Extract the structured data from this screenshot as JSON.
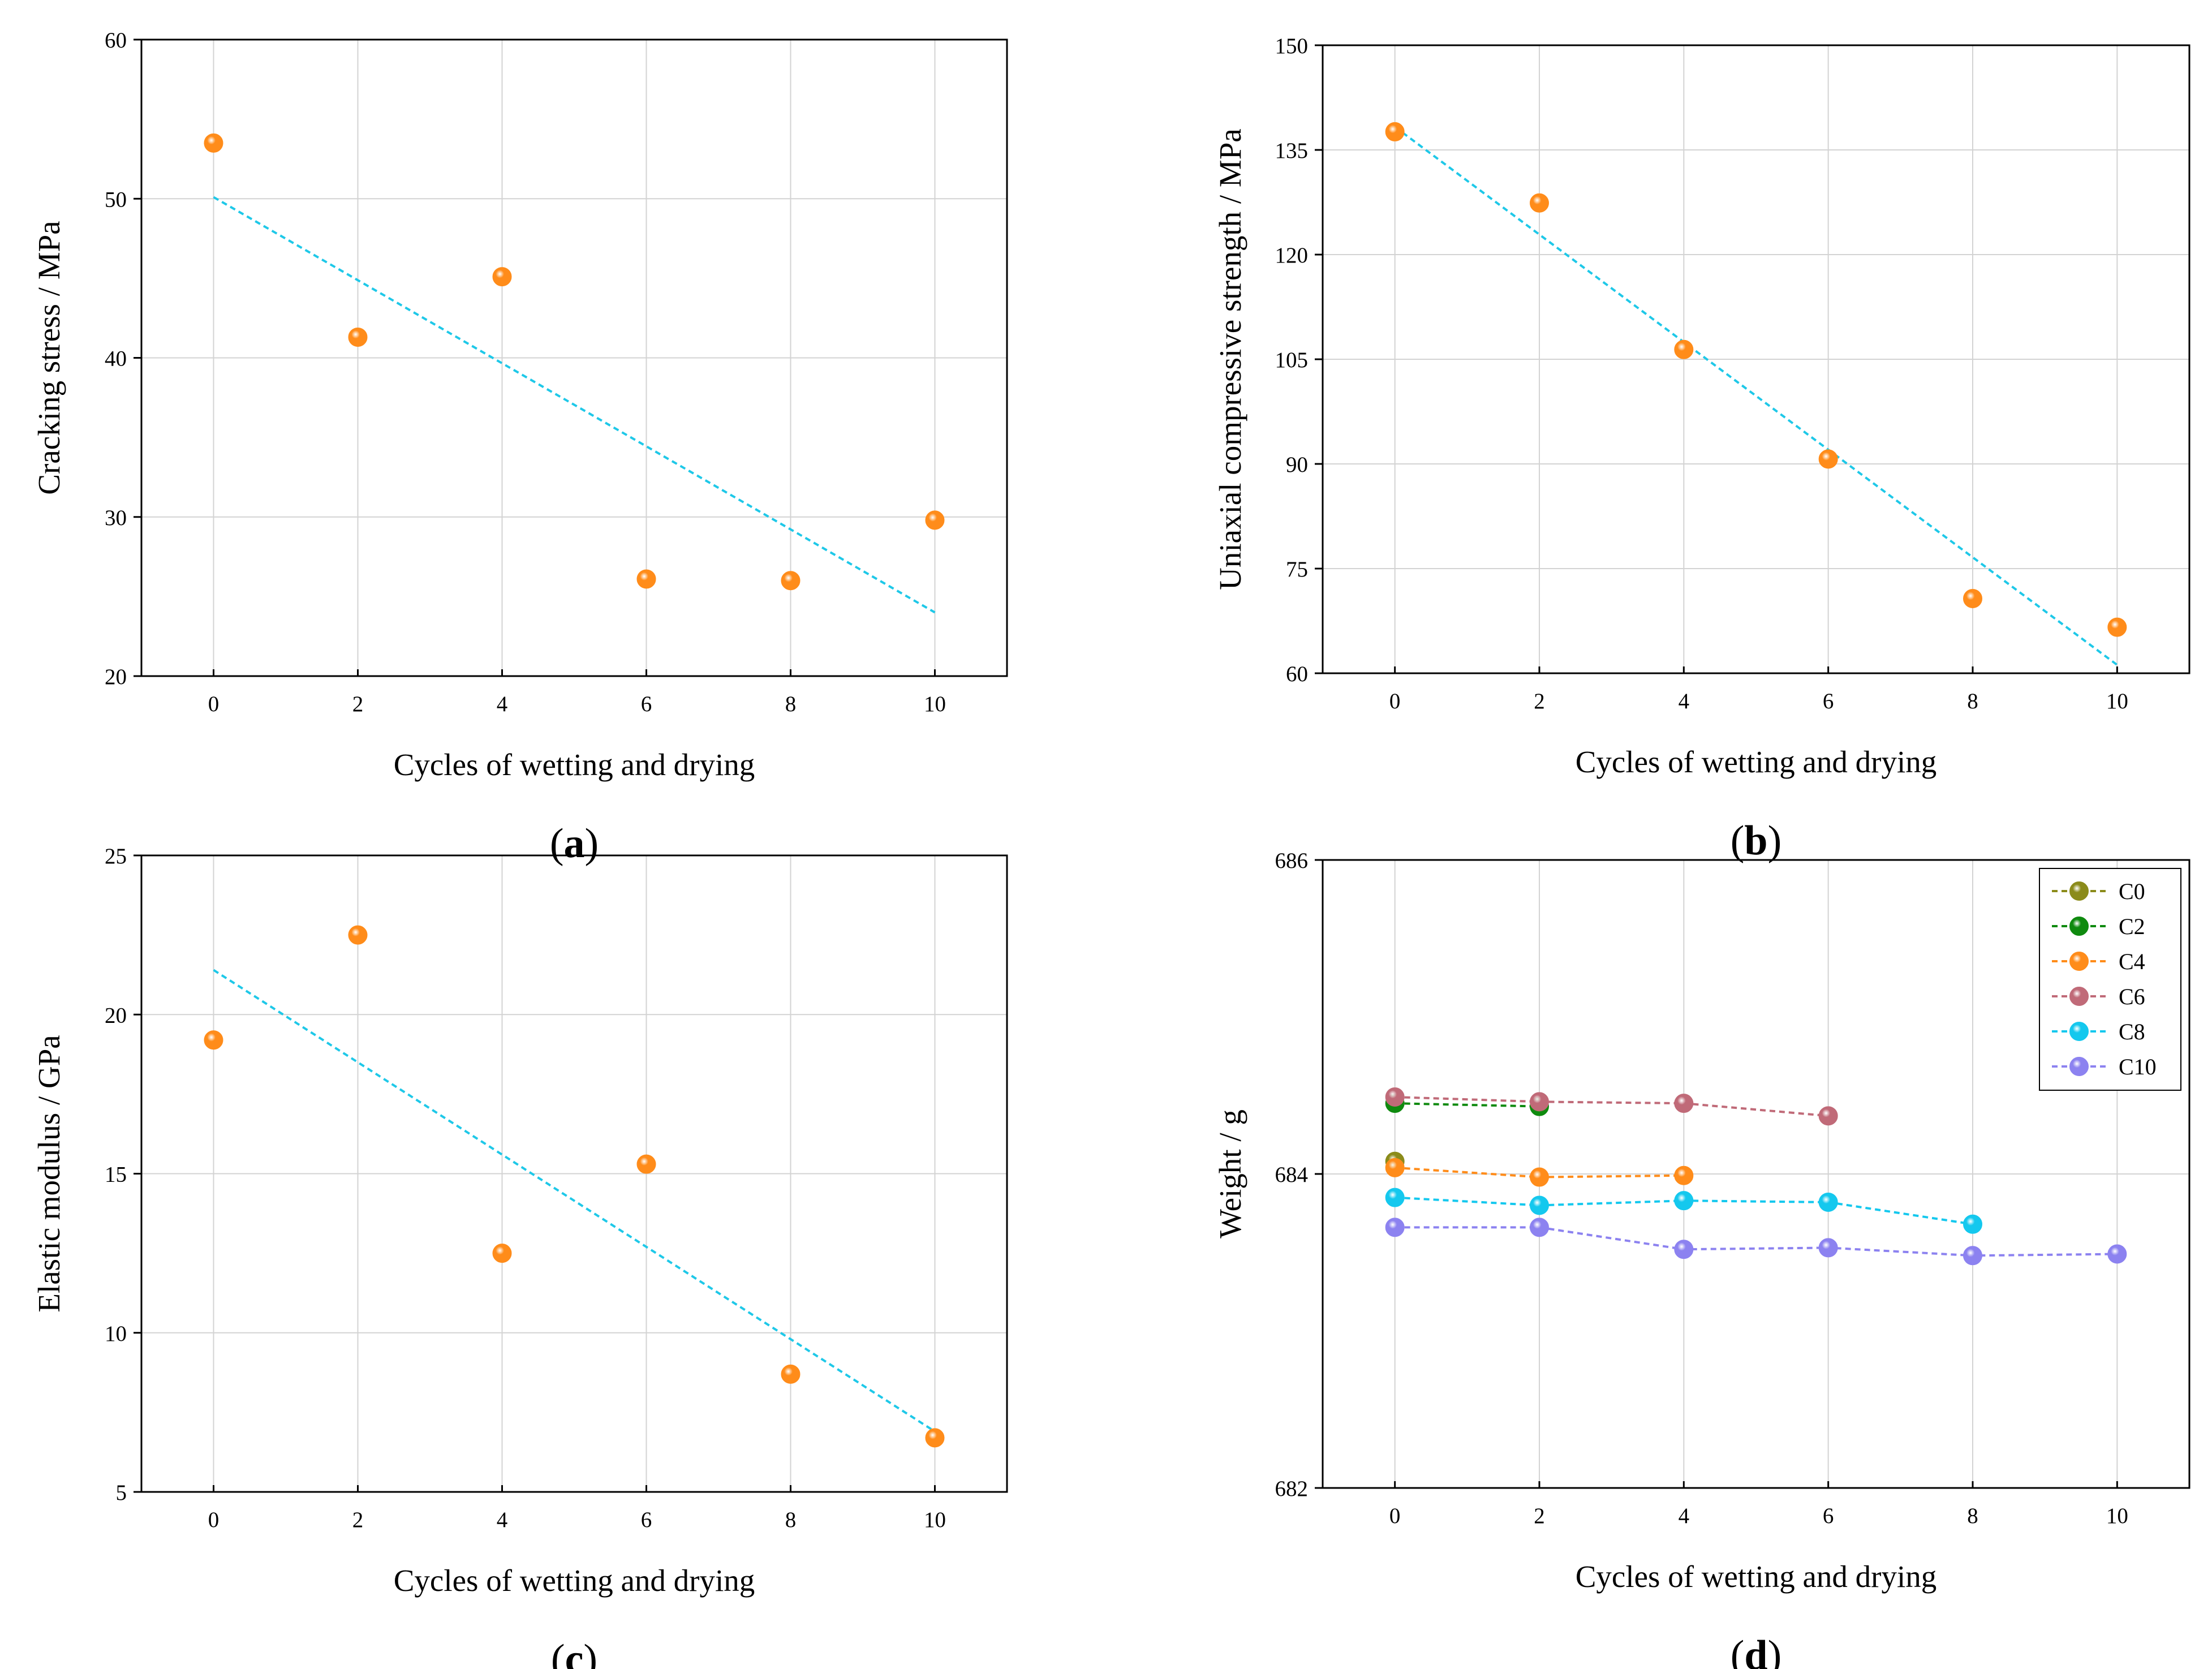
{
  "figure": {
    "colors": {
      "point": "#ff8c1a",
      "fit_line": "#1ec8e8",
      "grid": "#d3d3d3",
      "axis": "#000000"
    }
  },
  "chart_data": [
    {
      "id": "a",
      "panel_label": "a",
      "type": "scatter",
      "xlabel": "Cycles of wetting and drying",
      "ylabel": "Cracking stress / MPa",
      "xlim": [
        -1,
        11
      ],
      "ylim": [
        20,
        60
      ],
      "xticks": [
        0,
        2,
        4,
        6,
        8,
        10
      ],
      "yticks": [
        20,
        30,
        40,
        50,
        60
      ],
      "grid": true,
      "series": [
        {
          "name": "data",
          "x": [
            0,
            2,
            4,
            6,
            8,
            10
          ],
          "y": [
            53.5,
            41.3,
            45.1,
            26.1,
            26.0,
            29.8
          ],
          "color": "#ff8c1a"
        }
      ],
      "fit_line": {
        "x": [
          0,
          10
        ],
        "y": [
          50.1,
          24.0
        ],
        "color": "#1ec8e8"
      }
    },
    {
      "id": "b",
      "panel_label": "b",
      "type": "scatter",
      "xlabel": "Cycles of wetting and drying",
      "ylabel": "Uniaxial compressive strength / MPa",
      "xlim": [
        -1,
        11
      ],
      "ylim": [
        60,
        150
      ],
      "xticks": [
        0,
        2,
        4,
        6,
        8,
        10
      ],
      "yticks": [
        60,
        75,
        90,
        105,
        120,
        135,
        150
      ],
      "grid": true,
      "series": [
        {
          "name": "data",
          "x": [
            0,
            2,
            4,
            6,
            8,
            10
          ],
          "y": [
            137.6,
            127.4,
            106.4,
            90.7,
            70.7,
            66.6
          ],
          "color": "#ff8c1a"
        }
      ],
      "fit_line": {
        "x": [
          0,
          10
        ],
        "y": [
          138.3,
          61.2
        ],
        "color": "#1ec8e8"
      }
    },
    {
      "id": "c",
      "panel_label": "c",
      "type": "scatter",
      "xlabel": "Cycles of wetting and drying",
      "ylabel": "Elastic modulus / GPa",
      "xlim": [
        -1,
        11
      ],
      "ylim": [
        5,
        25
      ],
      "xticks": [
        0,
        2,
        4,
        6,
        8,
        10
      ],
      "yticks": [
        5,
        10,
        15,
        20,
        25
      ],
      "grid": true,
      "series": [
        {
          "name": "data",
          "x": [
            0,
            2,
            4,
            6,
            8,
            10
          ],
          "y": [
            19.2,
            22.5,
            12.5,
            15.3,
            8.7,
            6.7
          ],
          "color": "#ff8c1a"
        }
      ],
      "fit_line": {
        "x": [
          0,
          10
        ],
        "y": [
          21.4,
          6.9
        ],
        "color": "#1ec8e8"
      }
    },
    {
      "id": "d",
      "panel_label": "d",
      "type": "line",
      "xlabel": "Cycles of wetting and drying",
      "ylabel": "Weight / g",
      "xlim": [
        -1,
        11
      ],
      "ylim": [
        682,
        686
      ],
      "xticks": [
        0,
        2,
        4,
        6,
        8,
        10
      ],
      "yticks": [
        682,
        684,
        686
      ],
      "grid": true,
      "legend_position": "top-right",
      "series": [
        {
          "name": "C0",
          "x": [
            0
          ],
          "y": [
            684.08
          ],
          "color": "#8b8b1a"
        },
        {
          "name": "C2",
          "x": [
            0,
            2
          ],
          "y": [
            684.45,
            684.43
          ],
          "color": "#0f8a0f"
        },
        {
          "name": "C4",
          "x": [
            0,
            2,
            4
          ],
          "y": [
            684.04,
            683.98,
            683.99
          ],
          "color": "#ff8c1a"
        },
        {
          "name": "C6",
          "x": [
            0,
            2,
            4,
            6
          ],
          "y": [
            684.49,
            684.46,
            684.45,
            684.37
          ],
          "color": "#c06a78"
        },
        {
          "name": "C8",
          "x": [
            0,
            2,
            4,
            6,
            8
          ],
          "y": [
            683.85,
            683.8,
            683.83,
            683.82,
            683.68
          ],
          "color": "#14c8ee"
        },
        {
          "name": "C10",
          "x": [
            0,
            2,
            4,
            6,
            8,
            10
          ],
          "y": [
            683.66,
            683.66,
            683.52,
            683.53,
            683.48,
            683.49
          ],
          "color": "#8c82f0"
        }
      ]
    }
  ]
}
